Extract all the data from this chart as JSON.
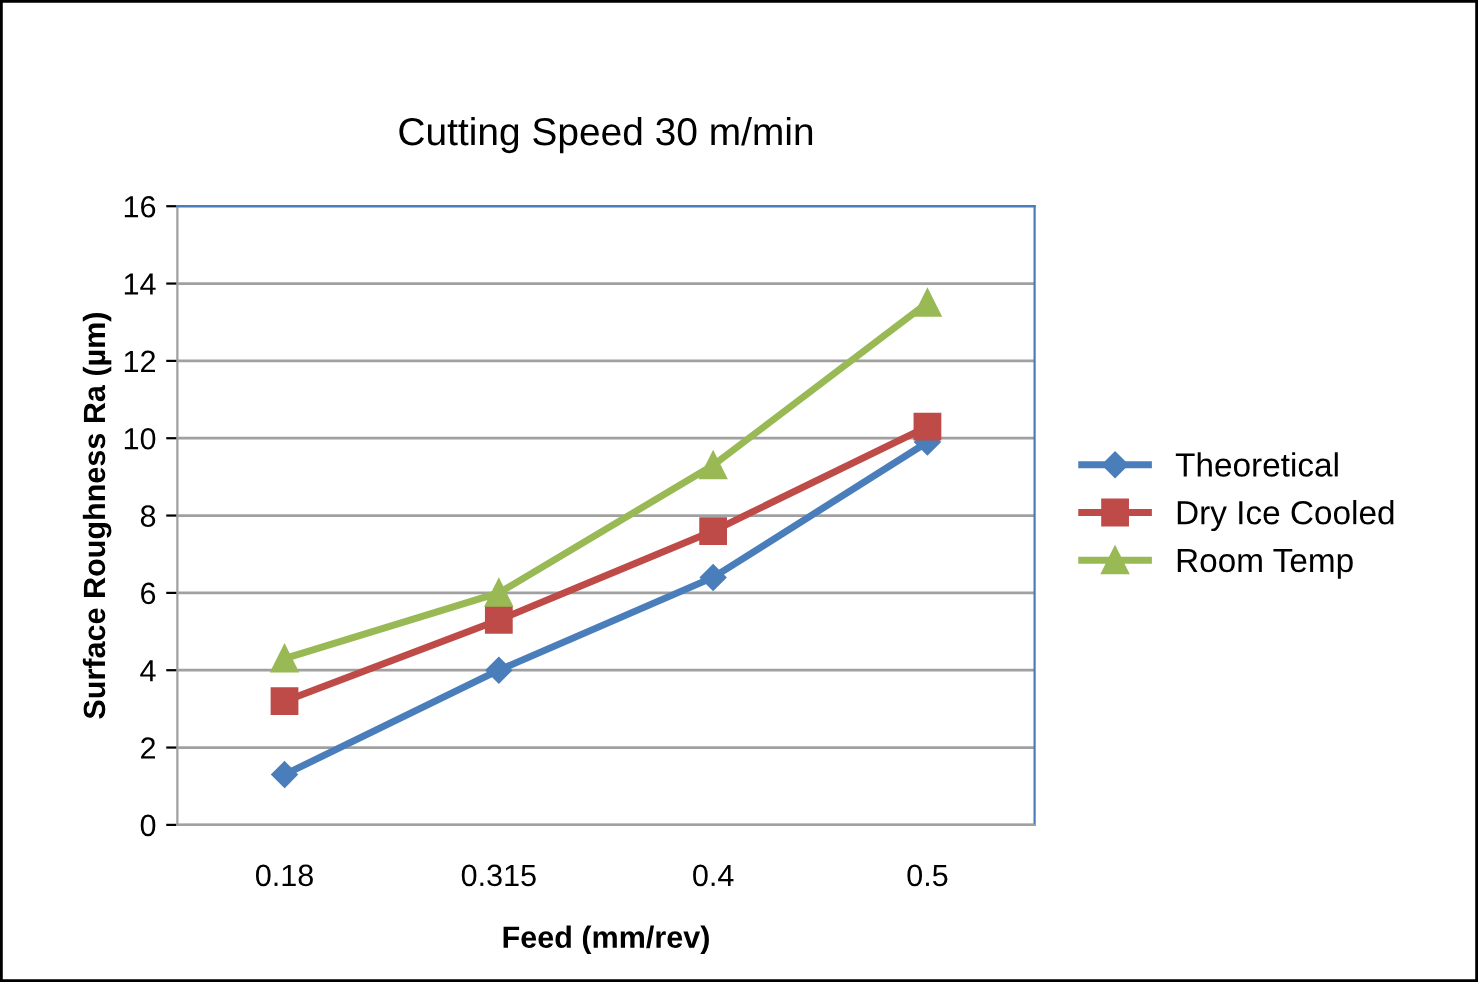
{
  "chart_data": {
    "type": "line",
    "title": "Cutting Speed 30 m/min",
    "xlabel": "Feed (mm/rev)",
    "ylabel": "Surface Roughness Ra (µm)",
    "categories": [
      "0.18",
      "0.315",
      "0.4",
      "0.5"
    ],
    "series": [
      {
        "name": "Theoretical",
        "color": "#4a7ebb",
        "marker": "diamond",
        "values": [
          1.3,
          4.0,
          6.4,
          9.9
        ]
      },
      {
        "name": "Dry Ice Cooled",
        "color": "#be4b48",
        "marker": "square",
        "values": [
          3.2,
          5.3,
          7.6,
          10.3
        ]
      },
      {
        "name": "Room Temp",
        "color": "#98b954",
        "marker": "triangle",
        "values": [
          4.3,
          6.0,
          9.3,
          13.5
        ]
      }
    ],
    "ylim": [
      0,
      16
    ],
    "yticks": [
      0,
      2,
      4,
      6,
      8,
      10,
      12,
      14,
      16
    ],
    "grid": "y",
    "legend": "right",
    "line_style": "solid"
  }
}
